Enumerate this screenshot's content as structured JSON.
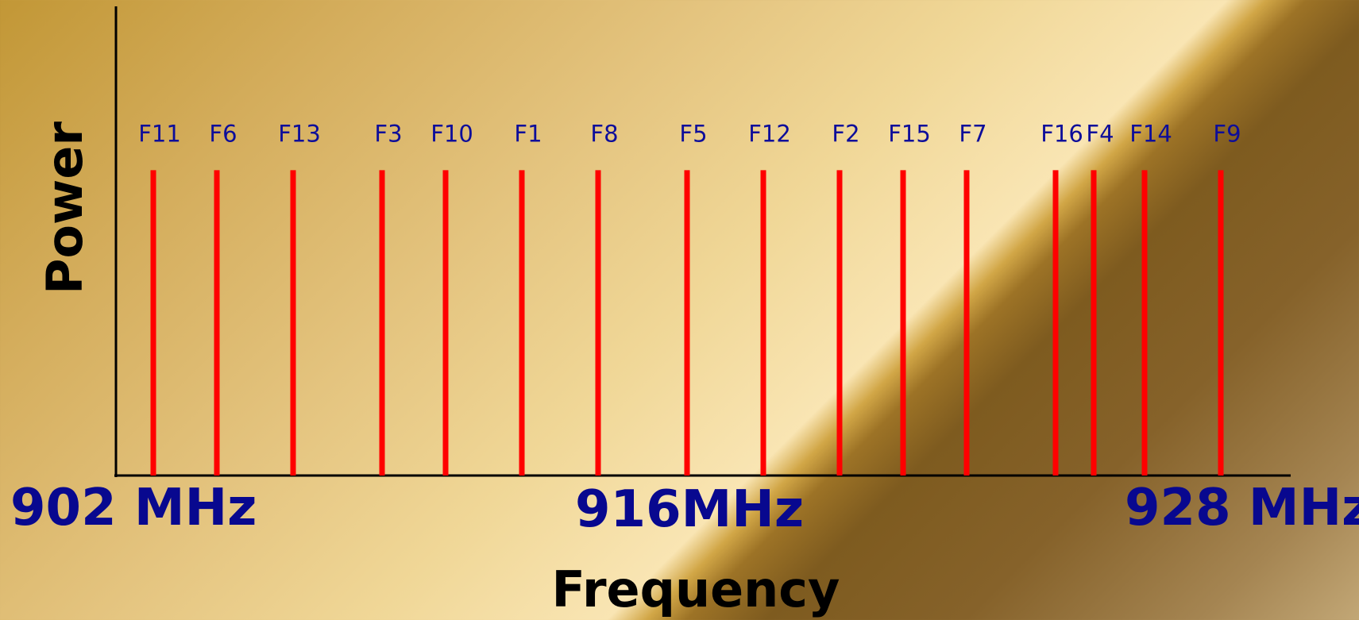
{
  "chart_data": {
    "type": "bar",
    "xlabel": "Frequency",
    "ylabel": "Power",
    "title": "",
    "channels": [
      {
        "name": "F11",
        "x": 1
      },
      {
        "name": "F6",
        "x": 2
      },
      {
        "name": "F13",
        "x": 3
      },
      {
        "name": "F3",
        "x": 4
      },
      {
        "name": "F10",
        "x": 5
      },
      {
        "name": "F1",
        "x": 6
      },
      {
        "name": "F8",
        "x": 7
      },
      {
        "name": "F5",
        "x": 8
      },
      {
        "name": "F12",
        "x": 9
      },
      {
        "name": "F2",
        "x": 10
      },
      {
        "name": "F15",
        "x": 11
      },
      {
        "name": "F7",
        "x": 12
      },
      {
        "name": "F16",
        "x": 13
      },
      {
        "name": "F4",
        "x": 14
      },
      {
        "name": "F14",
        "x": 15
      },
      {
        "name": "F9",
        "x": 16
      }
    ],
    "values": [
      1,
      1,
      1,
      1,
      1,
      1,
      1,
      1,
      1,
      1,
      1,
      1,
      1,
      1,
      1,
      1
    ],
    "ylim": [
      0,
      1.3
    ],
    "bar_color": "#ff0000",
    "markers": [
      {
        "label": "902 MHz"
      },
      {
        "label": "916MHz"
      },
      {
        "label": "928 MHz"
      }
    ]
  }
}
